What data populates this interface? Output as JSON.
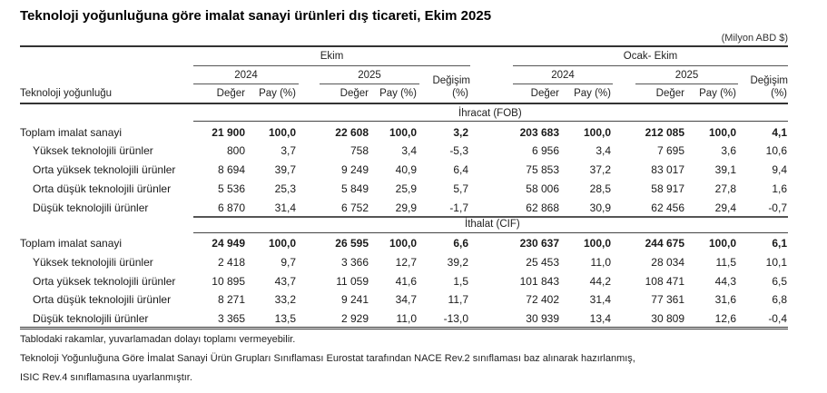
{
  "title": "Teknoloji yoğunluğuna göre imalat sanayi ürünleri dış ticareti, Ekim 2025",
  "unit": "(Milyon ABD $)",
  "header": {
    "row_label": "Teknoloji yoğunluğu",
    "period_groups": [
      "Ekim",
      "Ocak- Ekim"
    ],
    "years": [
      "2024",
      "2025",
      "2024",
      "2025"
    ],
    "value_label": "Değer",
    "share_label": "Pay (%)",
    "change_label_1": "Değişim",
    "change_label_2": "(%)"
  },
  "sections": [
    {
      "name": "İhracat (FOB)",
      "rows": [
        {
          "label": "Toplam imalat sanayi",
          "bold": true,
          "values": [
            "21 900",
            "100,0",
            "22 608",
            "100,0",
            "3,2",
            "203 683",
            "100,0",
            "212 085",
            "100,0",
            "4,1"
          ]
        },
        {
          "label": "Yüksek teknolojili ürünler",
          "bold": false,
          "values": [
            "800",
            "3,7",
            "758",
            "3,4",
            "-5,3",
            "6 956",
            "3,4",
            "7 695",
            "3,6",
            "10,6"
          ]
        },
        {
          "label": "Orta yüksek teknolojili ürünler",
          "bold": false,
          "values": [
            "8 694",
            "39,7",
            "9 249",
            "40,9",
            "6,4",
            "75 853",
            "37,2",
            "83 017",
            "39,1",
            "9,4"
          ]
        },
        {
          "label": "Orta düşük teknolojili ürünler",
          "bold": false,
          "values": [
            "5 536",
            "25,3",
            "5 849",
            "25,9",
            "5,7",
            "58 006",
            "28,5",
            "58 917",
            "27,8",
            "1,6"
          ]
        },
        {
          "label": "Düşük teknolojili ürünler",
          "bold": false,
          "values": [
            "6 870",
            "31,4",
            "6 752",
            "29,9",
            "-1,7",
            "62 868",
            "30,9",
            "62 456",
            "29,4",
            "-0,7"
          ]
        }
      ]
    },
    {
      "name": "İthalat (CIF)",
      "rows": [
        {
          "label": "Toplam imalat sanayi",
          "bold": true,
          "values": [
            "24 949",
            "100,0",
            "26 595",
            "100,0",
            "6,6",
            "230 637",
            "100,0",
            "244 675",
            "100,0",
            "6,1"
          ]
        },
        {
          "label": "Yüksek teknolojili ürünler",
          "bold": false,
          "values": [
            "2 418",
            "9,7",
            "3 366",
            "12,7",
            "39,2",
            "25 453",
            "11,0",
            "28 034",
            "11,5",
            "10,1"
          ]
        },
        {
          "label": "Orta yüksek teknolojili ürünler",
          "bold": false,
          "values": [
            "10 895",
            "43,7",
            "11 059",
            "41,6",
            "1,5",
            "101 843",
            "44,2",
            "108 471",
            "44,3",
            "6,5"
          ]
        },
        {
          "label": "Orta düşük teknolojili ürünler",
          "bold": false,
          "values": [
            "8 271",
            "33,2",
            "9 241",
            "34,7",
            "11,7",
            "72 402",
            "31,4",
            "77 361",
            "31,6",
            "6,8"
          ]
        },
        {
          "label": "Düşük teknolojili ürünler",
          "bold": false,
          "values": [
            "3 365",
            "13,5",
            "2 929",
            "11,0",
            "-13,0",
            "30 939",
            "13,4",
            "30 809",
            "12,6",
            "-0,4"
          ]
        }
      ]
    }
  ],
  "footnotes": [
    "Tablodaki rakamlar, yuvarlamadan dolayı toplamı vermeyebilir.",
    "Teknoloji Yoğunluğuna Göre İmalat Sanayi Ürün Grupları Sınıflaması Eurostat tarafından NACE Rev.2 sınıflaması baz alınarak hazırlanmış,",
    "ISIC Rev.4 sınıflamasına uyarlanmıştır."
  ]
}
